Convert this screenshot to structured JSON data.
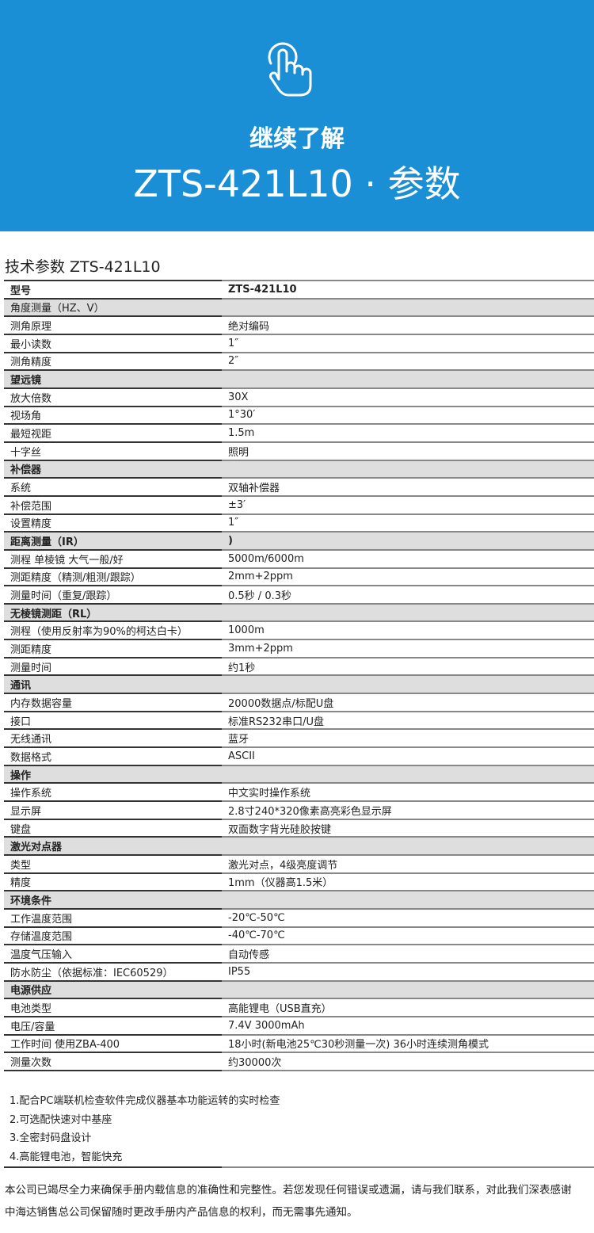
{
  "banner": {
    "icon": "touch-hand-icon",
    "subtitle": "继续了解",
    "title": "ZTS-421L10 · 参数",
    "color": "#1b8fd6"
  },
  "section_title": "技术参数  ZTS-421L10",
  "table": {
    "header": [
      "型号",
      "ZTS-421L10"
    ],
    "rows": [
      {
        "type": "section",
        "bold": false,
        "k": "角度测量（HZ、V）",
        "v": ""
      },
      {
        "k": "测角原理",
        "v": "绝对编码"
      },
      {
        "k": "最小读数",
        "v": "1″"
      },
      {
        "k": "测角精度",
        "v": "2″"
      },
      {
        "type": "section",
        "k": "望远镜",
        "v": ""
      },
      {
        "k": "放大倍数",
        "v": "30X"
      },
      {
        "k": "视场角",
        "v": "1°30′"
      },
      {
        "k": "最短视距",
        "v": "1.5m"
      },
      {
        "k": "十字丝",
        "v": "照明"
      },
      {
        "type": "section",
        "k": "补偿器",
        "v": ""
      },
      {
        "k": "系统",
        "v": "双轴补偿器"
      },
      {
        "k": "补偿范围",
        "v": "±3′"
      },
      {
        "k": "设置精度",
        "v": "1″"
      },
      {
        "type": "section",
        "k": "距离测量（IR）",
        "v": ")"
      },
      {
        "k": "测程 单棱镜  大气一般/好",
        "v": "5000m/6000m"
      },
      {
        "k": "测距精度（精测/粗测/跟踪）",
        "v": "2mm+2ppm"
      },
      {
        "k": "测量时间（重复/跟踪）",
        "v": "0.5秒 / 0.3秒"
      },
      {
        "type": "section",
        "k": "无棱镜测距（RL）",
        "v": ""
      },
      {
        "k": "测程（使用反射率为90%的柯达白卡）",
        "v": "1000m"
      },
      {
        "k": "测距精度",
        "v": "3mm+2ppm"
      },
      {
        "k": "测量时间",
        "v": "约1秒"
      },
      {
        "type": "section",
        "k": "通讯",
        "v": ""
      },
      {
        "k": "内存数据容量",
        "v": "20000数据点/标配U盘"
      },
      {
        "k": "接口",
        "v": "标准RS232串口/U盘"
      },
      {
        "k": "无线通讯",
        "v": "蓝牙"
      },
      {
        "k": "数据格式",
        "v": "ASCII"
      },
      {
        "type": "section",
        "k": "操作",
        "v": ""
      },
      {
        "k": "操作系统",
        "v": "中文实时操作系统"
      },
      {
        "k": "显示屏",
        "v": "2.8寸240*320像素高亮彩色显示屏"
      },
      {
        "k": "键盘",
        "v": "双面数字背光硅胶按键"
      },
      {
        "type": "section",
        "k": "激光对点器",
        "v": ""
      },
      {
        "k": "类型",
        "v": "激光对点，4级亮度调节"
      },
      {
        "k": "精度",
        "v": "1mm（仪器高1.5米）"
      },
      {
        "type": "section",
        "k": "环境条件",
        "v": ""
      },
      {
        "k": "工作温度范围",
        "v": "-20℃-50℃"
      },
      {
        "k": "存储温度范围",
        "v": "-40℃-70℃"
      },
      {
        "k": "温度气压输入",
        "v": "自动传感"
      },
      {
        "k": "防水防尘（依据标准：IEC60529）",
        "v": "IP55"
      },
      {
        "type": "section",
        "k": "电源供应",
        "v": ""
      },
      {
        "k": "电池类型",
        "v": "高能锂电（USB直充）"
      },
      {
        "k": "电压/容量",
        "v": "7.4V 3000mAh"
      },
      {
        "k": "工作时间 使用ZBA-400",
        "v": "18小时(新电池25℃30秒测量一次) 36小时连续测角模式"
      },
      {
        "k": "测量次数",
        "v": "约30000次"
      }
    ]
  },
  "notes": [
    "1.配合PC端联机检查软件完成仪器基本功能运转的实时检查",
    "2.可选配快速对中基座",
    "3.全密封码盘设计",
    "4.高能锂电池，智能快充"
  ],
  "footer": [
    "本公司已竭尽全力来确保手册内载信息的准确性和完整性。若您发现任何错误或遗漏，请与我们联系，对此我们深表感谢",
    "中海达销售总公司保留随时更改手册内产品信息的权利，而无需事先通知。"
  ]
}
